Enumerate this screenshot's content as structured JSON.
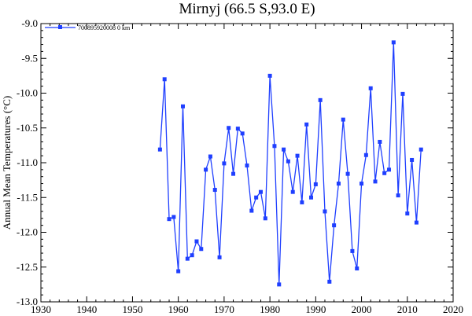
{
  "chart_data": {
    "type": "line",
    "title": "Mirnyj (66.5 S,93.0 E)",
    "xlabel": "",
    "ylabel": "Annual Mean Temperatures (°C)",
    "xlim": [
      1930,
      2020
    ],
    "ylim": [
      -13.0,
      -9.0
    ],
    "xticks": [
      "1930",
      "1940",
      "1950",
      "1960",
      "1970",
      "1980",
      "1990",
      "2000",
      "2010",
      "2020"
    ],
    "yticks": [
      "-9.0",
      "-9.5",
      "-10.0",
      "-10.5",
      "-11.0",
      "-11.5",
      "-12.0",
      "-12.5",
      "-13.0"
    ],
    "grid": false,
    "legend_position": "top-left",
    "color": "#1f3fff",
    "series": [
      {
        "name": "700895920008 0 km",
        "x": [
          1956,
          1957,
          1958,
          1959,
          1960,
          1961,
          1962,
          1963,
          1964,
          1965,
          1966,
          1967,
          1968,
          1969,
          1970,
          1971,
          1972,
          1973,
          1974,
          1975,
          1976,
          1977,
          1978,
          1979,
          1980,
          1981,
          1982,
          1983,
          1984,
          1985,
          1986,
          1987,
          1988,
          1989,
          1990,
          1991,
          1992,
          1993,
          1994,
          1995,
          1996,
          1997,
          1998,
          1999,
          2000,
          2001,
          2002,
          2003,
          2004,
          2005,
          2006,
          2007,
          2008,
          2009,
          2010,
          2011,
          2012,
          2013
        ],
        "values": [
          -10.81,
          -9.8,
          -11.81,
          -11.78,
          -12.56,
          -10.19,
          -12.38,
          -12.33,
          -12.13,
          -12.24,
          -11.1,
          -10.91,
          -11.39,
          -12.36,
          -11.01,
          -10.5,
          -11.16,
          -10.51,
          -10.58,
          -11.04,
          -11.69,
          -11.5,
          -11.42,
          -11.8,
          -9.75,
          -10.76,
          -12.75,
          -10.81,
          -10.98,
          -11.42,
          -10.9,
          -11.57,
          -10.45,
          -11.5,
          -11.31,
          -10.1,
          -11.7,
          -12.71,
          -11.9,
          -11.3,
          -10.38,
          -11.16,
          -12.27,
          -12.52,
          -11.3,
          -10.89,
          -9.93,
          -11.27,
          -10.7,
          -11.15,
          -11.1,
          -9.27,
          -11.47,
          -10.01,
          -11.73,
          -10.96,
          -11.86,
          -10.81
        ]
      }
    ]
  }
}
